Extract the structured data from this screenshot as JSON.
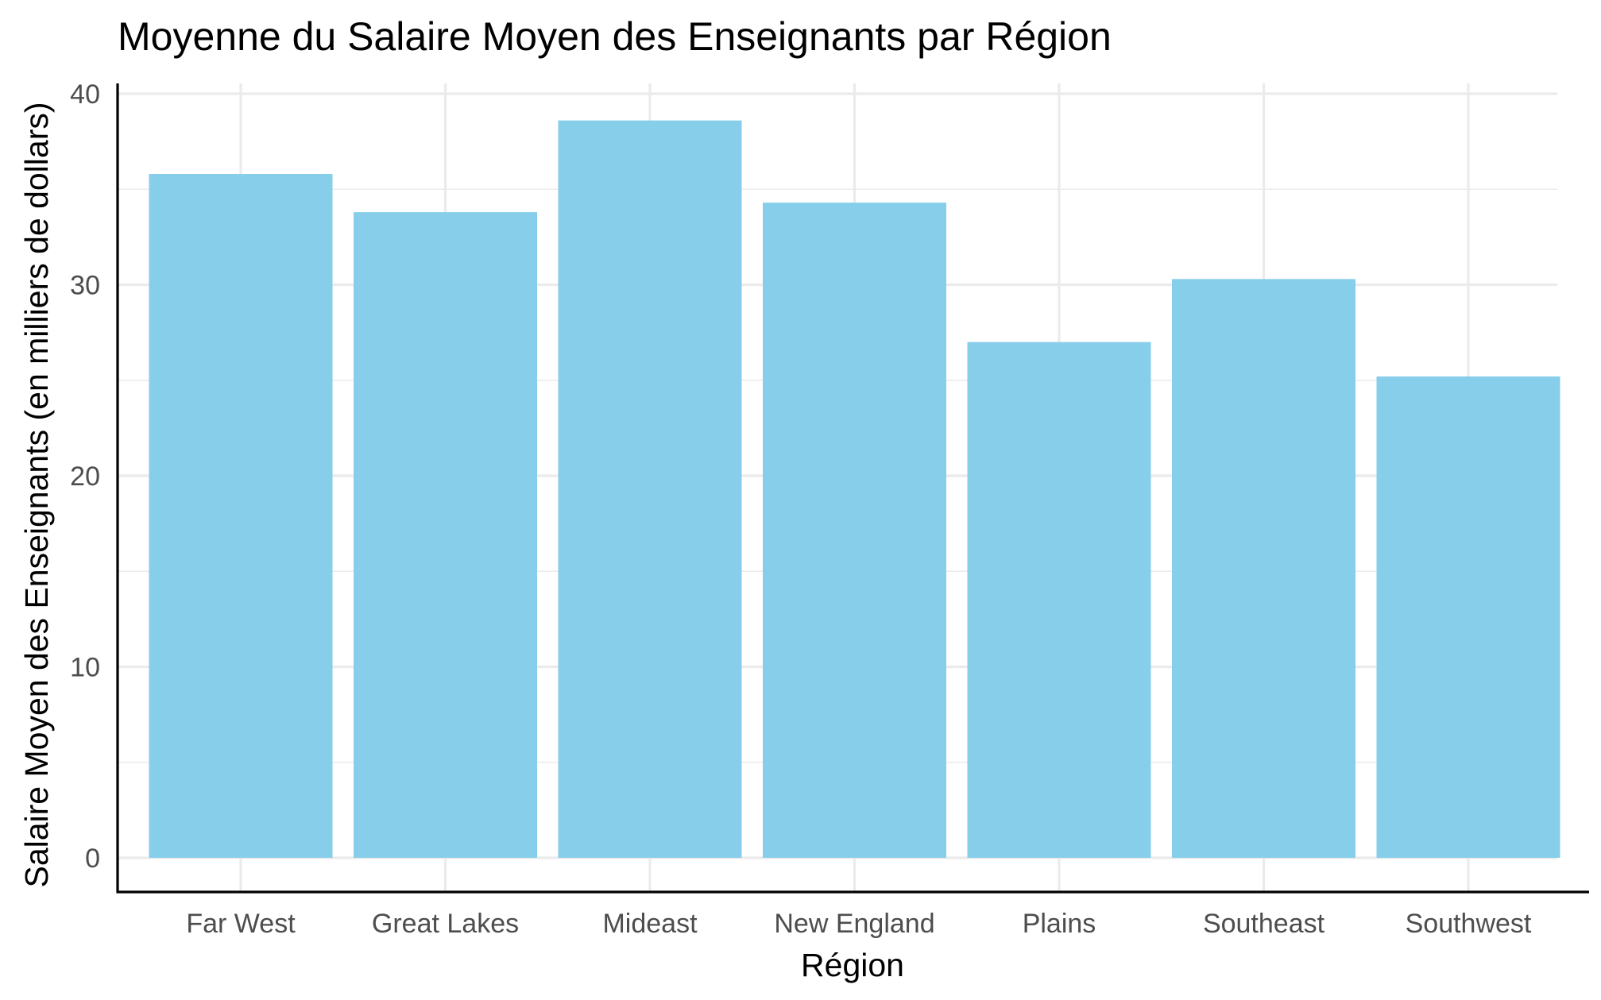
{
  "chart_data": {
    "type": "bar",
    "title": "Moyenne du Salaire Moyen des Enseignants par Région",
    "xlabel": "Région",
    "ylabel": "Salaire Moyen des Enseignants (en milliers de dollars)",
    "categories": [
      "Far West",
      "Great Lakes",
      "Mideast",
      "New England",
      "Plains",
      "Southeast",
      "Southwest"
    ],
    "values": [
      35.8,
      33.8,
      38.6,
      34.3,
      27.0,
      30.3,
      25.2
    ],
    "ylim": [
      0,
      40
    ],
    "yticks": [
      0,
      10,
      20,
      30,
      40
    ],
    "bar_color": "#87ceeb",
    "grid": true
  }
}
